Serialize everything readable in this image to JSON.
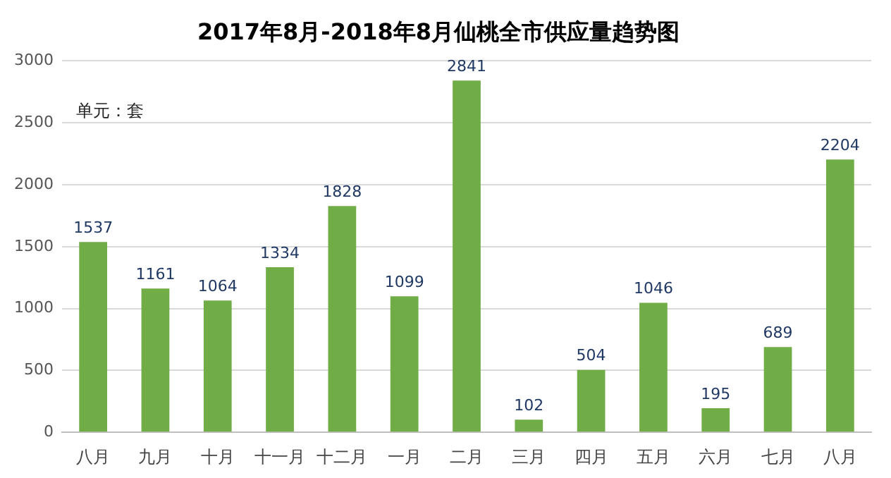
{
  "chart_data": {
    "type": "bar",
    "title": "2017年8月-2018年8月仙桃全市供应量趋势图",
    "categories": [
      "八月",
      "九月",
      "十月",
      "十一月",
      "十二月",
      "一月",
      "二月",
      "三月",
      "四月",
      "五月",
      "六月",
      "七月",
      "八月"
    ],
    "values": [
      1537,
      1161,
      1064,
      1334,
      1828,
      1099,
      2841,
      102,
      504,
      1046,
      195,
      689,
      2204
    ],
    "color": "#70ad47",
    "ylim": [
      0,
      3000
    ],
    "yticks": [
      0,
      500,
      1000,
      1500,
      2000,
      2500,
      3000
    ],
    "grid": "y",
    "data_labels": true,
    "annotations": [
      "单元：套"
    ]
  }
}
